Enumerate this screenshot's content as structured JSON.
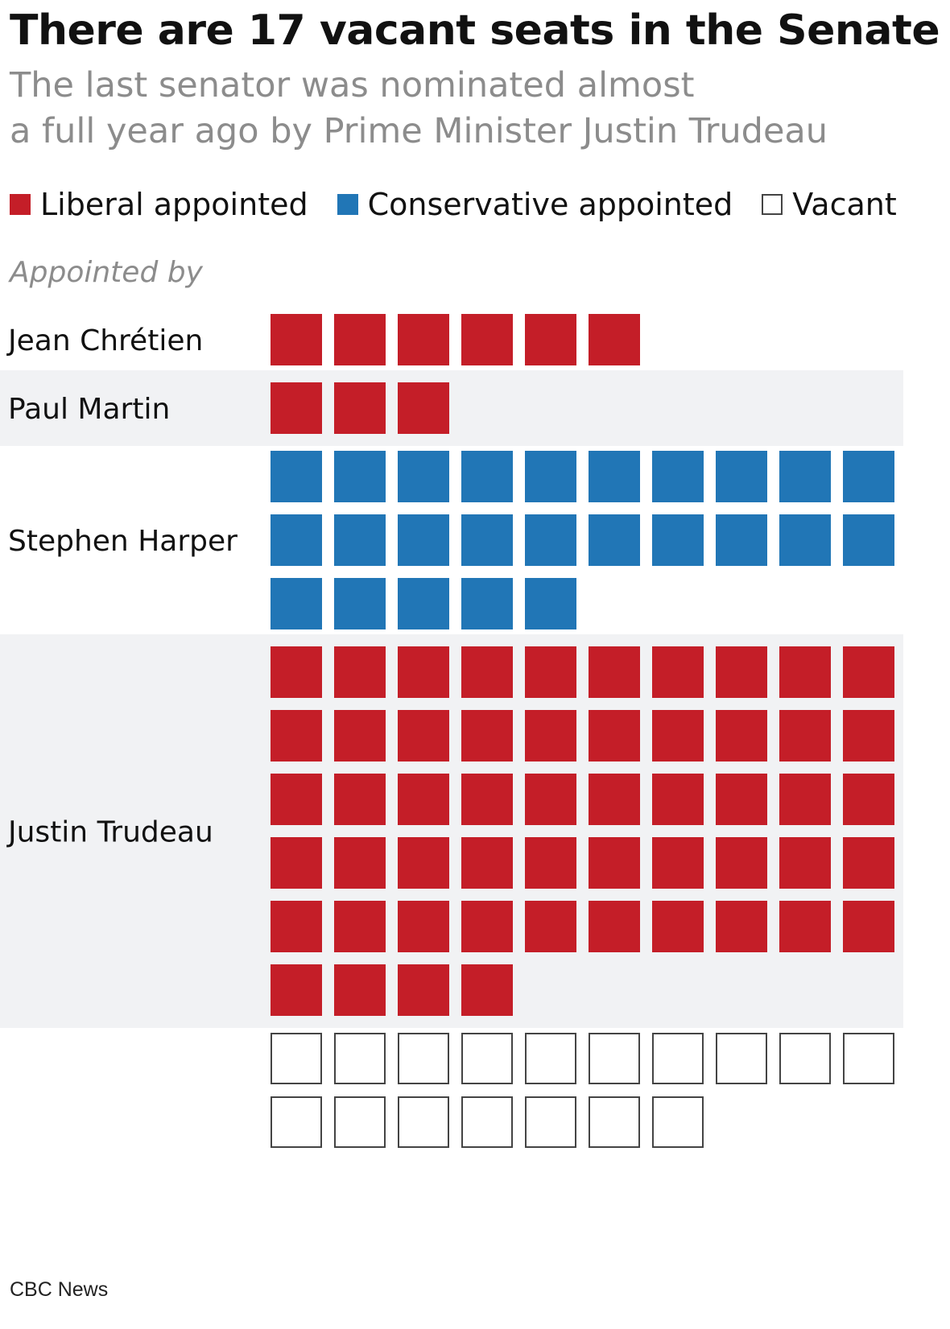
{
  "title": "There are 17 vacant seats in the Senate",
  "subtitle_line1": "The last senator was nominated almost",
  "subtitle_line2": "a full year ago by Prime Minister Justin Trudeau",
  "legend": [
    {
      "label": "Liberal appointed",
      "color": "#c41e28",
      "type": "liberal"
    },
    {
      "label": "Conservative appointed",
      "color": "#2176b6",
      "type": "conservative"
    },
    {
      "label": "Vacant",
      "color": "#ffffff",
      "type": "vacant"
    }
  ],
  "axis_label": "Appointed by",
  "source": "CBC News",
  "chart_data": {
    "type": "waffle",
    "total_seats": 105,
    "columns": 10,
    "colors": {
      "liberal": "#c41e28",
      "conservative": "#2176b6",
      "vacant": "#ffffff",
      "vacant_border": "#444444",
      "band": "#f1f2f4"
    },
    "rows": [
      {
        "name": "Jean Chrétien",
        "count": 6,
        "party": "liberal",
        "shaded": false
      },
      {
        "name": "Paul Martin",
        "count": 3,
        "party": "liberal",
        "shaded": true
      },
      {
        "name": "Stephen Harper",
        "count": 25,
        "party": "conservative",
        "shaded": false
      },
      {
        "name": "Justin Trudeau",
        "count": 54,
        "party": "liberal",
        "shaded": true
      },
      {
        "name": "",
        "count": 17,
        "party": "vacant",
        "shaded": false
      }
    ]
  }
}
